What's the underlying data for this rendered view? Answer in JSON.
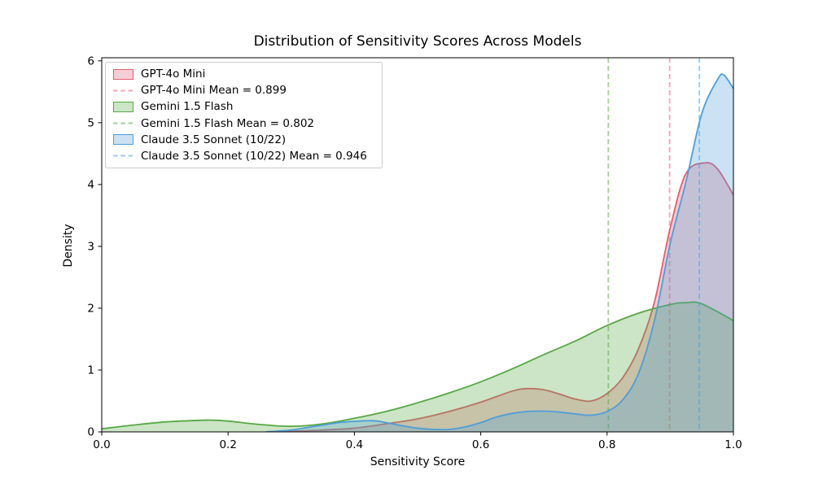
{
  "chart_data": {
    "type": "area",
    "subtype": "kde-density",
    "title": "Distribution of Sensitivity Scores Across Models",
    "xlabel": "Sensitivity Score",
    "ylabel": "Density",
    "xlim": [
      0.0,
      1.0
    ],
    "ylim": [
      0,
      6.05
    ],
    "xticks": [
      "0.0",
      "0.2",
      "0.4",
      "0.6",
      "0.8",
      "1.0"
    ],
    "yticks": [
      "0",
      "1",
      "2",
      "3",
      "4",
      "5",
      "6"
    ],
    "grid": false,
    "legend_position": "upper left",
    "series": [
      {
        "name": "GPT-4o Mini",
        "line_color": "#e35d73",
        "fill_alpha": 0.3,
        "mean": 0.899,
        "mean_line_alpha": 0.55,
        "x": [
          0.26,
          0.3,
          0.35,
          0.4,
          0.45,
          0.5,
          0.55,
          0.6,
          0.65,
          0.675,
          0.7,
          0.725,
          0.75,
          0.775,
          0.8,
          0.825,
          0.85,
          0.875,
          0.9,
          0.925,
          0.955,
          0.975,
          1.0
        ],
        "density": [
          0.0,
          0.01,
          0.03,
          0.06,
          0.13,
          0.21,
          0.33,
          0.48,
          0.66,
          0.7,
          0.68,
          0.61,
          0.53,
          0.5,
          0.62,
          0.88,
          1.35,
          2.1,
          3.3,
          4.18,
          4.35,
          4.25,
          3.83
        ]
      },
      {
        "name": "Gemini 1.5 Flash",
        "line_color": "#56a843",
        "fill_alpha": 0.3,
        "mean": 0.802,
        "mean_line_alpha": 0.55,
        "x": [
          0.0,
          0.05,
          0.1,
          0.15,
          0.175,
          0.2,
          0.25,
          0.3,
          0.35,
          0.4,
          0.45,
          0.5,
          0.55,
          0.6,
          0.65,
          0.7,
          0.75,
          0.8,
          0.85,
          0.9,
          0.925,
          0.95,
          1.0
        ],
        "density": [
          0.05,
          0.11,
          0.16,
          0.185,
          0.19,
          0.175,
          0.12,
          0.09,
          0.13,
          0.22,
          0.33,
          0.47,
          0.63,
          0.81,
          1.02,
          1.25,
          1.47,
          1.72,
          1.92,
          2.06,
          2.09,
          2.07,
          1.8
        ]
      },
      {
        "name": "Claude 3.5 Sonnet (10/22)",
        "line_color": "#4f9ed7",
        "fill_alpha": 0.3,
        "mean": 0.946,
        "mean_line_alpha": 0.55,
        "x": [
          0.26,
          0.3,
          0.325,
          0.35,
          0.375,
          0.4,
          0.43,
          0.45,
          0.475,
          0.5,
          0.525,
          0.55,
          0.575,
          0.6,
          0.625,
          0.65,
          0.675,
          0.7,
          0.725,
          0.75,
          0.775,
          0.8,
          0.825,
          0.85,
          0.875,
          0.9,
          0.925,
          0.95,
          0.975,
          0.985,
          1.0
        ],
        "density": [
          0.0,
          0.03,
          0.07,
          0.11,
          0.15,
          0.17,
          0.18,
          0.15,
          0.1,
          0.06,
          0.04,
          0.04,
          0.08,
          0.15,
          0.24,
          0.3,
          0.33,
          0.335,
          0.32,
          0.29,
          0.27,
          0.33,
          0.52,
          0.95,
          1.8,
          3.05,
          4.05,
          5.15,
          5.7,
          5.77,
          5.55
        ]
      }
    ]
  },
  "legend": {
    "items": [
      {
        "label": "GPT-4o Mini",
        "swatch": "patch",
        "series": 0
      },
      {
        "label": "GPT-4o Mini Mean = 0.899",
        "swatch": "dashes",
        "series": 0
      },
      {
        "label": "Gemini 1.5 Flash",
        "swatch": "patch",
        "series": 1
      },
      {
        "label": "Gemini 1.5 Flash Mean = 0.802",
        "swatch": "dashes",
        "series": 1
      },
      {
        "label": "Claude 3.5 Sonnet (10/22)",
        "swatch": "patch",
        "series": 2
      },
      {
        "label": "Claude 3.5 Sonnet (10/22) Mean = 0.946",
        "swatch": "dashes",
        "series": 2
      }
    ]
  }
}
